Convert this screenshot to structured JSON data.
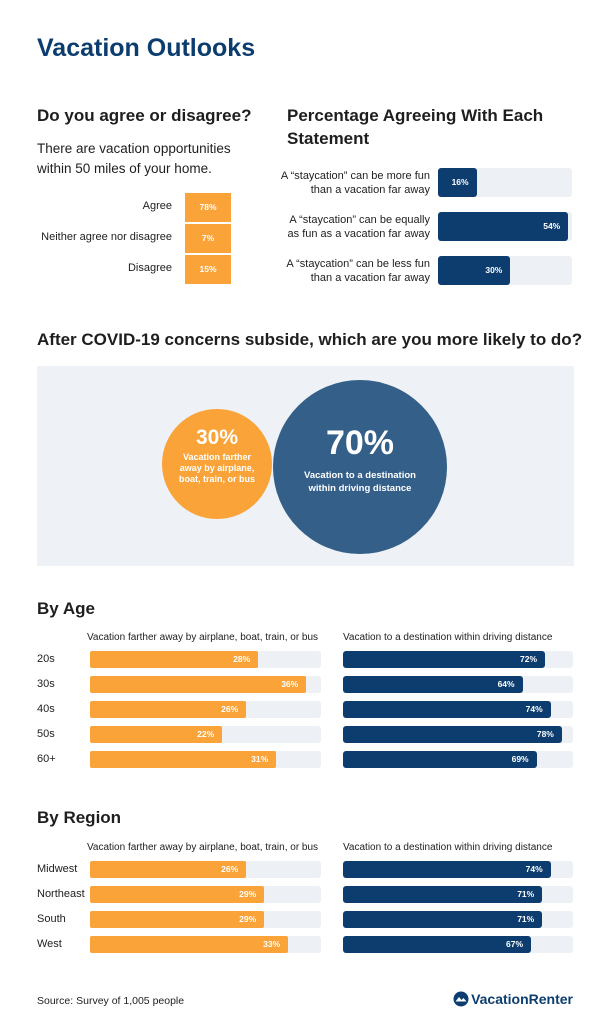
{
  "title": "Vacation Outlooks",
  "agree_section": {
    "heading": "Do you agree or disagree?",
    "statement": "There are vacation opportunities within 50 miles of your home."
  },
  "statement_section": {
    "heading": "Percentage Agreeing With Each Statement"
  },
  "covid_section": {
    "heading": "After COVID-19 concerns subside, which are you more likely to do?",
    "farther_pct": "30%",
    "farther_text": "Vacation farther away by airplane, boat, train, or bus",
    "driving_pct": "70%",
    "driving_text": "Vacation to a destination within driving distance"
  },
  "age_section": {
    "heading": "By Age",
    "col_left": "Vacation farther away by airplane, boat, train, or bus",
    "col_right": "Vacation to a destination within driving distance"
  },
  "region_section": {
    "heading": "By Region",
    "col_left": "Vacation farther away by airplane, boat, train, or bus",
    "col_right": "Vacation to a destination within driving distance"
  },
  "footer": {
    "source": "Source: Survey of 1,005 people",
    "logo_text": "VacationRenter"
  },
  "colors": {
    "navy": "#0c3d6e",
    "orange": "#f9a339",
    "track": "#edf0f4",
    "circle_blue": "#345f88"
  },
  "chart_data": [
    {
      "type": "table",
      "categories": [
        "Agree",
        "Neither agree nor disagree",
        "Disagree"
      ],
      "values": [
        78,
        7,
        15
      ],
      "labels": [
        "78%",
        "7%",
        "15%"
      ]
    },
    {
      "type": "bar",
      "categories": [
        "A “staycation” can be more fun than a vacation far away",
        "A “staycation” can be equally as fun as a vacation far away",
        "A “staycation” can be less fun than a vacation far away"
      ],
      "values": [
        16,
        54,
        30
      ],
      "labels": [
        "16%",
        "54%",
        "30%"
      ],
      "ylim": [
        0,
        100
      ]
    },
    {
      "type": "pie",
      "categories": [
        "Vacation farther away by airplane, boat, train, or bus",
        "Vacation to a destination within driving distance"
      ],
      "values": [
        30,
        70
      ]
    },
    {
      "type": "bar",
      "categories": [
        "20s",
        "30s",
        "40s",
        "50s",
        "60+"
      ],
      "series": [
        {
          "name": "Vacation farther away by airplane, boat, train, or bus",
          "values": [
            28,
            36,
            26,
            22,
            31
          ],
          "labels": [
            "28%",
            "36%",
            "26%",
            "22%",
            "31%"
          ]
        },
        {
          "name": "Vacation to a destination within driving distance",
          "values": [
            72,
            64,
            74,
            78,
            69
          ],
          "labels": [
            "72%",
            "64%",
            "74%",
            "78%",
            "69%"
          ]
        }
      ],
      "ylim": [
        0,
        100
      ]
    },
    {
      "type": "bar",
      "categories": [
        "Midwest",
        "Northeast",
        "South",
        "West"
      ],
      "series": [
        {
          "name": "Vacation farther away by airplane, boat, train, or bus",
          "values": [
            26,
            29,
            29,
            33
          ],
          "labels": [
            "26%",
            "29%",
            "29%",
            "33%"
          ]
        },
        {
          "name": "Vacation to a destination within driving distance",
          "values": [
            74,
            71,
            71,
            67
          ],
          "labels": [
            "74%",
            "71%",
            "71%",
            "67%"
          ]
        }
      ],
      "ylim": [
        0,
        100
      ]
    }
  ]
}
